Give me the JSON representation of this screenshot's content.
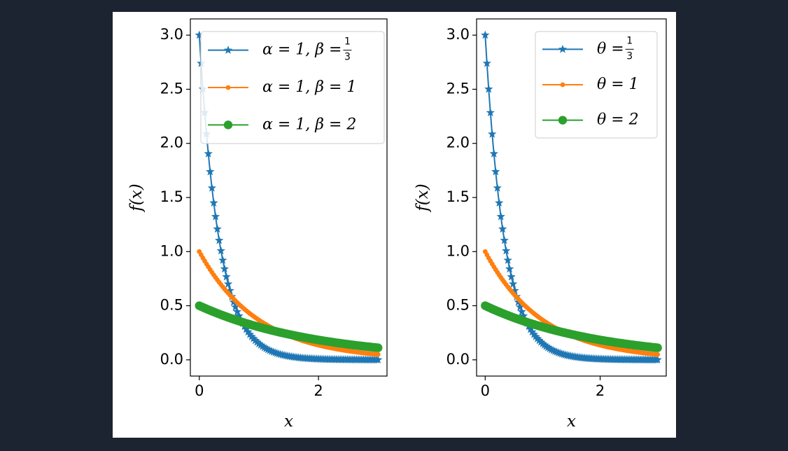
{
  "chart_data": [
    {
      "type": "line",
      "xlabel": "x",
      "ylabel": "f(x)",
      "xlim": [
        -0.15,
        3.15
      ],
      "ylim": [
        -0.15,
        3.15
      ],
      "xticks": [
        0,
        2
      ],
      "yticks": [
        0.0,
        0.5,
        1.0,
        1.5,
        2.0,
        2.5,
        3.0
      ],
      "x_range": [
        0,
        3
      ],
      "n_points": 100,
      "legend_loc": "upper right",
      "series": [
        {
          "name": "α = 1, β = 1/3",
          "alpha": 1,
          "beta": 0.3333,
          "color": "#1f77b4",
          "marker": "star",
          "values_at_ticks": {
            "x0": 3.0,
            "x1": 0.149,
            "x2": 0.007,
            "x3": 0.0004
          }
        },
        {
          "name": "α = 1, β = 1",
          "alpha": 1,
          "beta": 1,
          "color": "#ff7f0e",
          "marker": "point",
          "values_at_ticks": {
            "x0": 1.0,
            "x1": 0.368,
            "x2": 0.135,
            "x3": 0.05
          }
        },
        {
          "name": "α = 1, β = 2",
          "alpha": 1,
          "beta": 2,
          "color": "#2ca02c",
          "marker": "circle",
          "values_at_ticks": {
            "x0": 0.5,
            "x1": 0.303,
            "x2": 0.184,
            "x3": 0.112
          }
        }
      ]
    },
    {
      "type": "line",
      "xlabel": "x",
      "ylabel": "f(x)",
      "xlim": [
        -0.15,
        3.15
      ],
      "ylim": [
        -0.15,
        3.15
      ],
      "xticks": [
        0,
        2
      ],
      "yticks": [
        0.0,
        0.5,
        1.0,
        1.5,
        2.0,
        2.5,
        3.0
      ],
      "x_range": [
        0,
        3
      ],
      "n_points": 100,
      "legend_loc": "upper right",
      "series": [
        {
          "name": "θ = 1/3",
          "theta": 0.3333,
          "color": "#1f77b4",
          "marker": "star",
          "values_at_ticks": {
            "x0": 3.0,
            "x1": 0.149,
            "x2": 0.007,
            "x3": 0.0004
          }
        },
        {
          "name": "θ = 1",
          "theta": 1,
          "color": "#ff7f0e",
          "marker": "point",
          "values_at_ticks": {
            "x0": 1.0,
            "x1": 0.368,
            "x2": 0.135,
            "x3": 0.05
          }
        },
        {
          "name": "θ = 2",
          "theta": 2,
          "color": "#2ca02c",
          "marker": "circle",
          "values_at_ticks": {
            "x0": 0.5,
            "x1": 0.303,
            "x2": 0.184,
            "x3": 0.112
          }
        }
      ]
    }
  ]
}
